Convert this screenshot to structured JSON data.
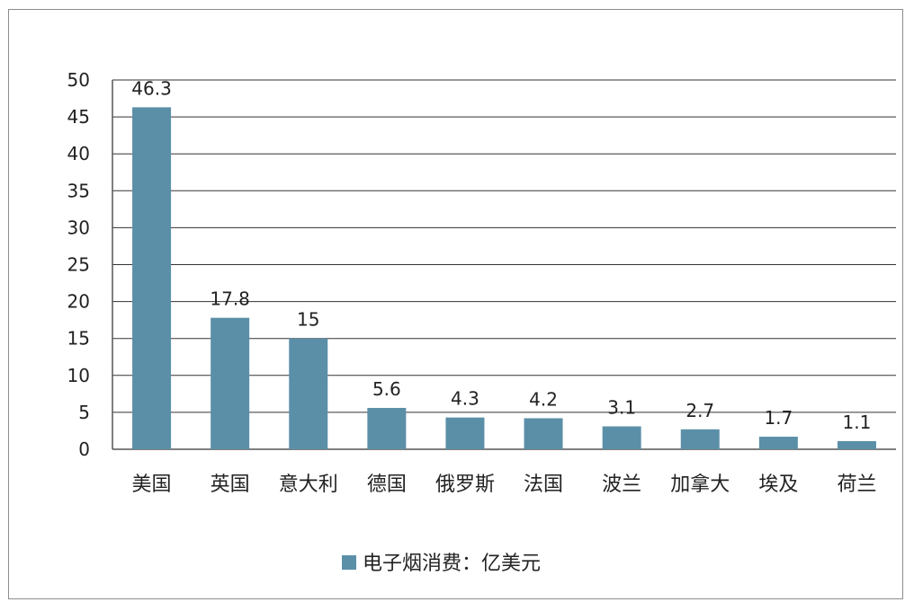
{
  "chart_data": {
    "type": "bar",
    "categories": [
      "美国",
      "英国",
      "意大利",
      "德国",
      "俄罗斯",
      "法国",
      "波兰",
      "加拿大",
      "埃及",
      "荷兰"
    ],
    "series": [
      {
        "name": "电子烟消费：亿美元",
        "values": [
          46.3,
          17.8,
          15,
          5.6,
          4.3,
          4.2,
          3.1,
          2.7,
          1.7,
          1.1
        ]
      }
    ],
    "data_labels": [
      "46.3",
      "17.8",
      "15",
      "5.6",
      "4.3",
      "4.2",
      "3.1",
      "2.7",
      "1.7",
      "1.1"
    ],
    "y_ticks": [
      0,
      5,
      10,
      15,
      20,
      25,
      30,
      35,
      40,
      45,
      50
    ],
    "ylim": [
      0,
      50
    ],
    "grid": true,
    "legend_position": "bottom",
    "bar_color": "#5b8fa8"
  }
}
